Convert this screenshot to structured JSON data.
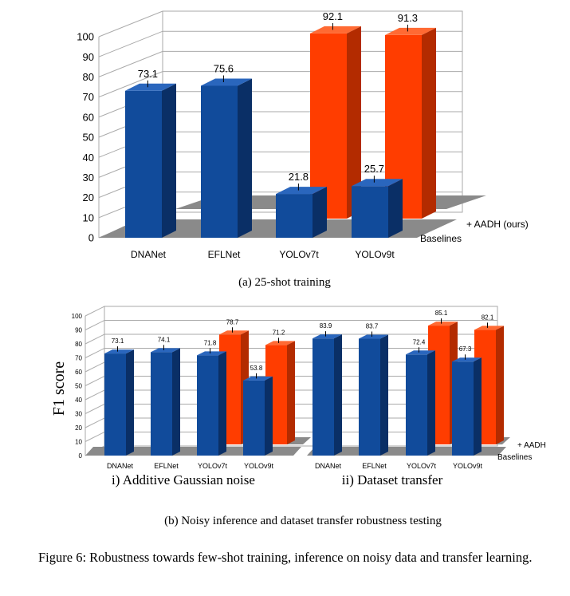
{
  "colors": {
    "baseline_front": "#114b9b",
    "baseline_side": "#0a2f66",
    "baseline_top": "#2a66bd",
    "aadh_front": "#ff3d00",
    "aadh_side": "#b32b00",
    "aadh_top": "#ff6a33",
    "floor": "#8a8a8a",
    "grid": "#aaaaaa"
  },
  "chart_data": [
    {
      "type": "bar",
      "subtitle": "(a) 25-shot training",
      "categories": [
        "DNANet",
        "EFLNet",
        "YOLOv7t",
        "YOLOv9t"
      ],
      "series": [
        {
          "name": "Baselines",
          "values": [
            73.1,
            75.6,
            21.8,
            25.7
          ],
          "labels": [
            "73.1",
            "75.6",
            "21.8",
            "25.7"
          ]
        },
        {
          "name": "+ AADH (ours)",
          "values": [
            null,
            null,
            92.1,
            91.3
          ],
          "labels": [
            "",
            "",
            "92.1",
            "91.3"
          ]
        }
      ],
      "ylim": [
        0,
        100
      ],
      "yticks": [
        "0",
        "10",
        "20",
        "30",
        "40",
        "50",
        "60",
        "70",
        "80",
        "90",
        "100"
      ],
      "grid": true
    },
    {
      "type": "bar",
      "subtitle": "(b) Noisy inference and dataset transfer robustness testing",
      "ylabel": "F1 score",
      "groups": [
        "i) Additive Gaussian noise",
        "ii) Dataset transfer"
      ],
      "categories": [
        "DNANet",
        "EFLNet",
        "YOLOv7t",
        "YOLOv9t",
        "DNANet",
        "EFLNet",
        "YOLOv7t",
        "YOLOv9t"
      ],
      "series": [
        {
          "name": "Baselines",
          "values": [
            73.1,
            74.1,
            71.8,
            53.8,
            83.9,
            83.7,
            72.4,
            67.3
          ],
          "labels": [
            "73.1",
            "74.1",
            "71.8",
            "53.8",
            "83.9",
            "83.7",
            "72.4",
            "67.3"
          ]
        },
        {
          "name": "+ AADH",
          "values": [
            null,
            null,
            78.7,
            71.2,
            null,
            null,
            85.1,
            82.1
          ],
          "labels": [
            "",
            "",
            "78.7",
            "71.2",
            "",
            "",
            "85.1",
            "82.1"
          ]
        }
      ],
      "ylim": [
        0,
        100
      ],
      "yticks": [
        "0",
        "10",
        "20",
        "30",
        "40",
        "50",
        "60",
        "70",
        "80",
        "90",
        "100"
      ],
      "grid": true
    }
  ],
  "caption": "Figure 6: Robustness towards few-shot training, inference on noisy data and transfer learning."
}
